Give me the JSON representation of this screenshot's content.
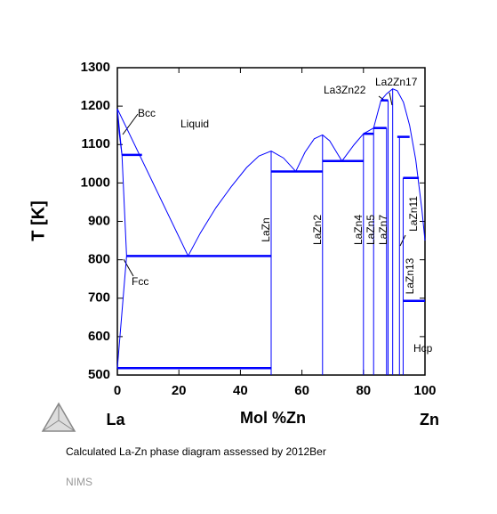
{
  "chart_data": {
    "type": "line",
    "title": "Calculated La-Zn phase diagram assessed by 2012Ber",
    "footer": "NIMS",
    "x_label": "Mol %Zn",
    "y_label": "T [K]",
    "x_left_label": "La",
    "x_right_label": "Zn",
    "color": "#0000ff",
    "xlim": [
      0,
      100
    ],
    "xticks": [
      0,
      20,
      40,
      60,
      80,
      100
    ],
    "ylim": [
      500,
      1300
    ],
    "yticks": [
      500,
      600,
      700,
      800,
      900,
      1000,
      1100,
      1200,
      1300
    ],
    "series": [
      {
        "x": [
          0,
          23
        ],
        "values": [
          1193,
          810
        ]
      },
      {
        "x": [
          23,
          27,
          32,
          37,
          42,
          46,
          50,
          54,
          58
        ],
        "values": [
          810,
          870,
          935,
          990,
          1040,
          1070,
          1083,
          1065,
          1030
        ]
      },
      {
        "x": [
          58,
          61,
          64,
          66.7,
          69,
          73
        ],
        "values": [
          1030,
          1080,
          1115,
          1125,
          1110,
          1057
        ]
      },
      {
        "x": [
          73,
          77,
          80,
          83.3,
          85.7,
          87.5,
          89.5,
          91,
          93,
          95,
          97,
          99,
          100
        ],
        "values": [
          1057,
          1100,
          1128,
          1143,
          1215,
          1232,
          1245,
          1240,
          1210,
          1150,
          1060,
          930,
          850
        ]
      },
      {
        "x": [
          0,
          1.5
        ],
        "values": [
          1193,
          1073
        ]
      },
      {
        "x": [
          0,
          0.6,
          1.5
        ],
        "values": [
          1193,
          1130,
          1073
        ]
      },
      {
        "x": [
          0,
          3,
          1.5
        ],
        "values": [
          518,
          810,
          1073
        ]
      },
      {
        "x": [
          1.5,
          8
        ],
        "values": [
          1073,
          1073
        ]
      },
      {
        "x": [
          3,
          50
        ],
        "values": [
          810,
          810
        ]
      },
      {
        "x": [
          0,
          50
        ],
        "values": [
          518,
          518
        ]
      },
      {
        "x": [
          50,
          66.7
        ],
        "values": [
          1030,
          1030
        ]
      },
      {
        "x": [
          66.7,
          80
        ],
        "values": [
          1057,
          1057
        ]
      },
      {
        "x": [
          80,
          83.3
        ],
        "values": [
          1128,
          1128
        ]
      },
      {
        "x": [
          83.3,
          87.5
        ],
        "values": [
          1143,
          1143
        ]
      },
      {
        "x": [
          85.7,
          88
        ],
        "values": [
          1215,
          1215
        ]
      },
      {
        "x": [
          91,
          95
        ],
        "values": [
          1120,
          1120
        ]
      },
      {
        "x": [
          92.9,
          98
        ],
        "values": [
          1013,
          1013
        ]
      },
      {
        "x": [
          93,
          100
        ],
        "values": [
          693,
          693
        ]
      },
      {
        "x": [
          50,
          50
        ],
        "values": [
          500,
          1083
        ]
      },
      {
        "x": [
          66.7,
          66.7
        ],
        "values": [
          500,
          1125
        ]
      },
      {
        "x": [
          80,
          80
        ],
        "values": [
          500,
          1128
        ]
      },
      {
        "x": [
          83.3,
          83.3
        ],
        "values": [
          500,
          1143
        ]
      },
      {
        "x": [
          87.5,
          87.5
        ],
        "values": [
          500,
          1143
        ]
      },
      {
        "x": [
          88,
          88
        ],
        "values": [
          500,
          1215
        ]
      },
      {
        "x": [
          89.5,
          89.5
        ],
        "values": [
          500,
          1245
        ]
      },
      {
        "x": [
          91.7,
          91.7
        ],
        "values": [
          500,
          1120
        ]
      },
      {
        "x": [
          92.9,
          92.9
        ],
        "values": [
          500,
          1013
        ]
      }
    ],
    "annotations": [
      "Liquid",
      "Bcc",
      "Fcc",
      "La3Zn22",
      "La2Zn17",
      "Hcp",
      "LaZn",
      "LaZn2",
      "LaZn4",
      "LaZn5",
      "LaZn7",
      "LaZn11",
      "LaZn13"
    ]
  }
}
